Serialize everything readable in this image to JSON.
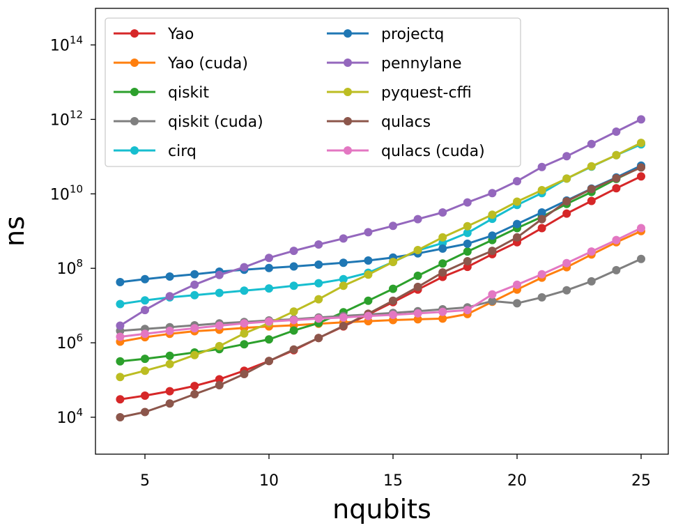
{
  "chart_data": {
    "type": "line",
    "xlabel": "nqubits",
    "ylabel": "ns",
    "y_scale": "log",
    "xlim": [
      3.4,
      25.6
    ],
    "ylim_log10": [
      3.0,
      15.2
    ],
    "x_ticks": [
      5,
      10,
      15,
      20,
      25
    ],
    "x_tick_labels": [
      "5",
      "10",
      "15",
      "20",
      "25"
    ],
    "y_ticks_log10": [
      4,
      6,
      8,
      10,
      12,
      14
    ],
    "y_tick_base": "10",
    "y_tick_exponents": [
      "4",
      "6",
      "8",
      "10",
      "12",
      "14"
    ],
    "grid": false,
    "legend_position": "top-left",
    "legend_columns": 2,
    "x": [
      4,
      5,
      6,
      7,
      8,
      9,
      10,
      11,
      12,
      13,
      14,
      15,
      16,
      17,
      18,
      19,
      20,
      21,
      22,
      23,
      24,
      25
    ],
    "series": [
      {
        "name": "Yao",
        "color": "#d62728",
        "log10_values": [
          4.48,
          4.58,
          4.7,
          4.84,
          5.02,
          5.25,
          5.51,
          5.8,
          6.13,
          6.44,
          6.76,
          7.09,
          7.43,
          7.77,
          8.04,
          8.38,
          8.7,
          9.08,
          9.47,
          9.81,
          10.15,
          10.47
        ]
      },
      {
        "name": "Yao (cuda)",
        "color": "#ff7f0e",
        "log10_values": [
          6.03,
          6.15,
          6.24,
          6.31,
          6.35,
          6.4,
          6.44,
          6.47,
          6.51,
          6.55,
          6.58,
          6.61,
          6.63,
          6.65,
          6.77,
          7.1,
          7.43,
          7.75,
          8.03,
          8.37,
          8.7,
          9.0
        ]
      },
      {
        "name": "qiskit",
        "color": "#2ca02c",
        "log10_values": [
          5.5,
          5.57,
          5.65,
          5.74,
          5.83,
          5.96,
          6.09,
          6.33,
          6.53,
          6.82,
          7.13,
          7.45,
          7.8,
          8.13,
          8.45,
          8.76,
          9.08,
          9.38,
          9.73,
          10.05,
          10.4,
          10.72
        ]
      },
      {
        "name": "qiskit (cuda)",
        "color": "#7f7f7f",
        "log10_values": [
          6.32,
          6.37,
          6.42,
          6.47,
          6.52,
          6.56,
          6.6,
          6.63,
          6.68,
          6.72,
          6.76,
          6.8,
          6.85,
          6.9,
          6.95,
          7.12,
          7.06,
          7.22,
          7.41,
          7.65,
          7.95,
          8.25
        ]
      },
      {
        "name": "cirq",
        "color": "#17becf",
        "log10_values": [
          7.04,
          7.14,
          7.22,
          7.28,
          7.34,
          7.4,
          7.46,
          7.53,
          7.6,
          7.71,
          7.88,
          8.17,
          8.48,
          8.68,
          8.95,
          9.33,
          9.7,
          10.02,
          10.41,
          10.73,
          11.04,
          11.33
        ]
      },
      {
        "name": "projectq",
        "color": "#1f77b4",
        "log10_values": [
          7.63,
          7.71,
          7.78,
          7.84,
          7.91,
          7.96,
          8.01,
          8.05,
          8.1,
          8.15,
          8.21,
          8.29,
          8.4,
          8.53,
          8.66,
          8.88,
          9.19,
          9.5,
          9.82,
          10.14,
          10.44,
          10.76
        ]
      },
      {
        "name": "pennylane",
        "color": "#9467bd",
        "log10_values": [
          6.46,
          6.88,
          7.25,
          7.56,
          7.82,
          8.03,
          8.28,
          8.47,
          8.64,
          8.8,
          8.97,
          9.14,
          9.32,
          9.5,
          9.77,
          10.02,
          10.34,
          10.72,
          11.01,
          11.34,
          11.67,
          12.0
        ]
      },
      {
        "name": "pyquest-cffi",
        "color": "#bcbd22",
        "log10_values": [
          5.08,
          5.25,
          5.43,
          5.67,
          5.91,
          6.25,
          6.53,
          6.84,
          7.17,
          7.53,
          7.83,
          8.17,
          8.49,
          8.83,
          9.13,
          9.44,
          9.79,
          10.1,
          10.41,
          10.74,
          11.04,
          11.37
        ]
      },
      {
        "name": "qulacs",
        "color": "#8c564b",
        "log10_values": [
          4.0,
          4.14,
          4.37,
          4.62,
          4.86,
          5.16,
          5.51,
          5.82,
          6.13,
          6.45,
          6.78,
          7.13,
          7.5,
          7.89,
          8.19,
          8.47,
          8.83,
          9.32,
          9.8,
          10.13,
          10.42,
          10.71
        ]
      },
      {
        "name": "qulacs (cuda)",
        "color": "#e377c2",
        "log10_values": [
          6.16,
          6.24,
          6.32,
          6.39,
          6.46,
          6.52,
          6.57,
          6.61,
          6.65,
          6.68,
          6.72,
          6.75,
          6.79,
          6.83,
          6.88,
          7.3,
          7.56,
          7.84,
          8.14,
          8.45,
          8.76,
          9.08
        ]
      }
    ]
  }
}
